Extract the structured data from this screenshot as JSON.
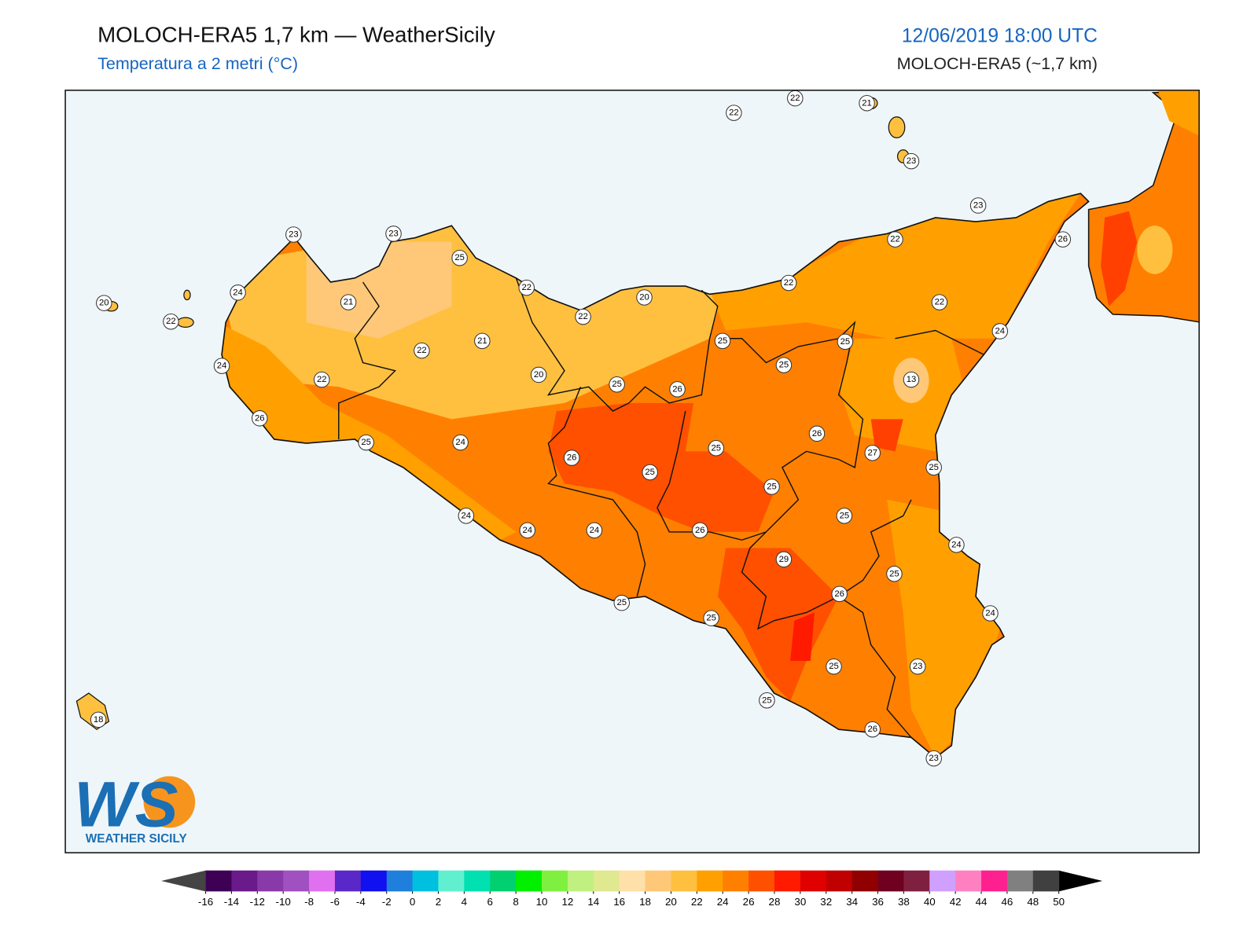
{
  "header": {
    "title": "MOLOCH-ERA5 1,7 km — WeatherSicily",
    "subtitle": "Temperatura a 2 metri (°C)",
    "datetime": "12/06/2019 18:00 UTC",
    "model": "MOLOCH-ERA5 (~1,7 km)"
  },
  "stations": [
    22,
    22,
    21,
    23,
    23,
    26,
    22,
    22,
    22,
    24,
    25,
    13,
    25,
    25,
    20,
    22,
    22,
    25,
    23,
    23,
    24,
    21,
    20,
    22,
    24,
    22,
    22,
    21,
    20,
    25,
    26,
    26,
    25,
    24,
    26,
    25,
    25,
    26,
    27,
    25,
    25,
    25,
    24,
    24,
    24,
    26,
    29,
    24,
    25,
    26,
    24,
    25,
    25,
    25,
    23,
    25,
    26,
    23,
    18
  ],
  "colorbar": {
    "ticks": [
      -16,
      -14,
      -12,
      -10,
      -8,
      -6,
      -4,
      -2,
      0,
      2,
      4,
      6,
      8,
      10,
      12,
      14,
      16,
      18,
      20,
      22,
      24,
      26,
      28,
      30,
      32,
      34,
      36,
      38,
      40,
      42,
      44,
      46,
      48,
      50
    ],
    "colors": [
      "#3d0055",
      "#6a1a8a",
      "#8a3aa8",
      "#a050c0",
      "#e070f0",
      "#5a28c8",
      "#1010f0",
      "#1e7fdc",
      "#00c0e0",
      "#60f0d0",
      "#00e0b0",
      "#00d070",
      "#00f000",
      "#80f040",
      "#c0f080",
      "#e0e890",
      "#ffe0a8",
      "#ffc878",
      "#ffc040",
      "#ffa000",
      "#ff8000",
      "#ff5000",
      "#ff1a00",
      "#e00000",
      "#c00000",
      "#900000",
      "#700020",
      "#802040",
      "#d0a0ff",
      "#ff80c0",
      "#ff2090",
      "#808080",
      "#404040"
    ],
    "under_color": "#444444",
    "over_color": "#000000"
  },
  "logo": {
    "mark": "WS",
    "name": "WEATHER SICILY"
  }
}
